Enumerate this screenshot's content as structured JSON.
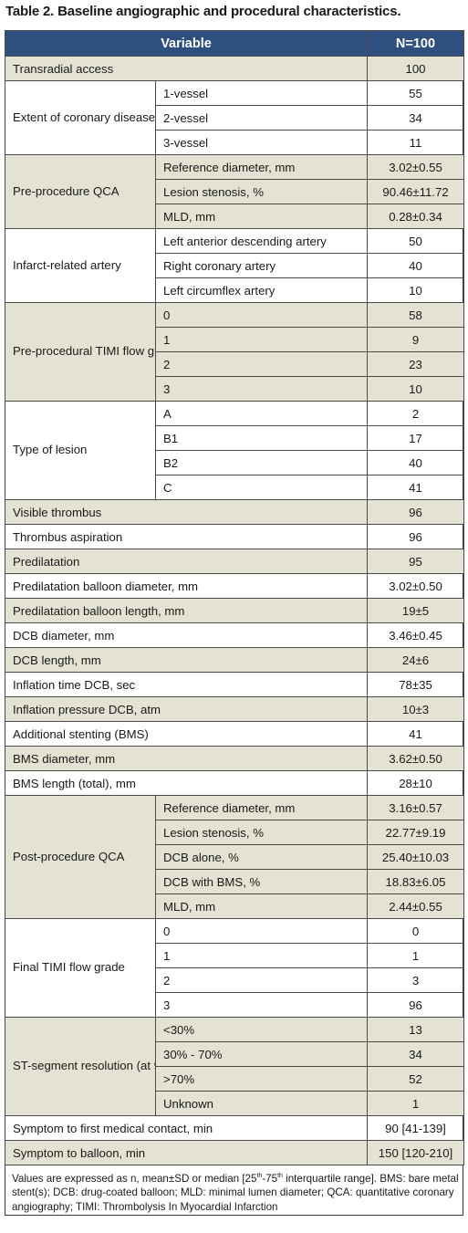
{
  "title": "Table 2. Baseline angiographic and procedural characteristics.",
  "header": {
    "variable": "Variable",
    "n": "N=100"
  },
  "rows": {
    "transradial": {
      "label": "Transradial access",
      "value": "100"
    },
    "extent": {
      "label": "Extent of coronary disease",
      "sub": [
        "1-vessel",
        "2-vessel",
        "3-vessel"
      ],
      "values": [
        "55",
        "34",
        "11"
      ]
    },
    "preqca": {
      "label": "Pre-procedure QCA",
      "sub": [
        "Reference diameter, mm",
        "Lesion stenosis, %",
        "MLD, mm"
      ],
      "values": [
        "3.02±0.55",
        "90.46±11.72",
        "0.28±0.34"
      ]
    },
    "ira": {
      "label": "Infarct-related artery",
      "sub": [
        "Left anterior descending artery",
        "Right coronary artery",
        "Left circumflex artery"
      ],
      "values": [
        "50",
        "40",
        "10"
      ]
    },
    "pretimi": {
      "label": "Pre-procedural TIMI flow grade",
      "sub": [
        "0",
        "1",
        "2",
        "3"
      ],
      "values": [
        "58",
        "9",
        "23",
        "10"
      ]
    },
    "lesion": {
      "label": "Type of lesion",
      "sub": [
        "A",
        "B1",
        "B2",
        "C"
      ],
      "values": [
        "2",
        "17",
        "40",
        "41"
      ]
    },
    "thrombus": {
      "label": "Visible thrombus",
      "value": "96"
    },
    "aspiration": {
      "label": "Thrombus aspiration",
      "value": "96"
    },
    "predil": {
      "label": "Predilatation",
      "value": "95"
    },
    "predil_diam": {
      "label": "Predilatation balloon diameter, mm",
      "value": "3.02±0.50"
    },
    "predil_len": {
      "label": "Predilatation balloon length, mm",
      "value": "19±5"
    },
    "dcb_diam": {
      "label": "DCB diameter, mm",
      "value": "3.46±0.45"
    },
    "dcb_len": {
      "label": "DCB length, mm",
      "value": "24±6"
    },
    "infl_time": {
      "label": "Inflation time DCB, sec",
      "value": "78±35"
    },
    "infl_press": {
      "label": "Inflation pressure DCB, atm",
      "value": "10±3"
    },
    "add_stent": {
      "label": "Additional stenting (BMS)",
      "value": "41"
    },
    "bms_diam": {
      "label": "BMS diameter, mm",
      "value": "3.62±0.50"
    },
    "bms_len": {
      "label": "BMS length (total), mm",
      "value": "28±10"
    },
    "postqca": {
      "label": "Post-procedure QCA",
      "sub": [
        "Reference diameter, mm",
        "Lesion stenosis, %",
        "DCB alone, %",
        "DCB with BMS, %",
        "MLD, mm"
      ],
      "values": [
        "3.16±0.57",
        "22.77±9.19",
        "25.40±10.03",
        "18.83±6.05",
        "2.44±0.55"
      ]
    },
    "finaltimi": {
      "label": "Final TIMI flow grade",
      "sub": [
        "0",
        "1",
        "2",
        "3"
      ],
      "values": [
        "0",
        "1",
        "3",
        "96"
      ]
    },
    "stres": {
      "label": "ST-segment resolution (at 90 min)",
      "sub": [
        "<30%",
        "30% - 70%",
        ">70%",
        "Unknown"
      ],
      "values": [
        "13",
        "34",
        "52",
        "1"
      ]
    },
    "fmc": {
      "label": "Symptom to first medical contact, min",
      "value": "90 [41-139]"
    },
    "balloon": {
      "label": "Symptom to balloon, min",
      "value": "150 [120-210]"
    }
  },
  "footnote": {
    "p1": "Values are expressed as n, mean±SD or median [25",
    "sup1": "th",
    "p2": "-75",
    "sup2": "th",
    "p3": " interquartile range]. BMS: bare metal stent(s); DCB: drug-coated balloon; MLD: minimal lumen diameter; QCA: quantitative coronary angiography; TIMI: Thrombolysis In Myocardial Infarction"
  }
}
